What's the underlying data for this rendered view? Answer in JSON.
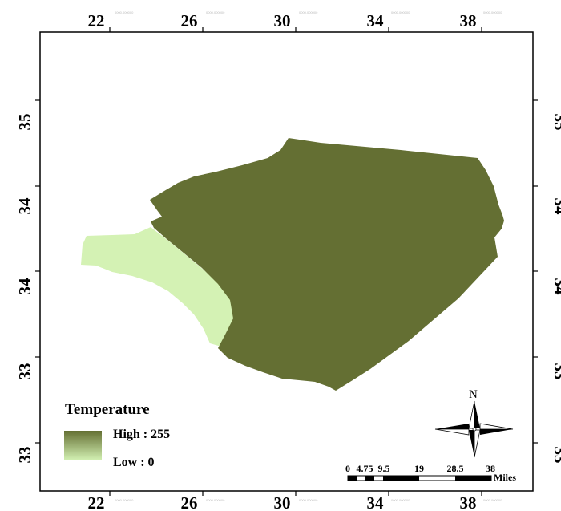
{
  "map": {
    "colors": {
      "high": "#646f33",
      "low": "#d4f2b4",
      "frame": "#000000",
      "background": "#ffffff"
    },
    "x_ticks": [
      "22",
      "26",
      "30",
      "34",
      "38"
    ],
    "y_ticks": [
      "35",
      "34",
      "34",
      "33",
      "33"
    ],
    "regions": [
      {
        "name": "high-temperature-region",
        "level": "high"
      },
      {
        "name": "low-temperature-region",
        "level": "low"
      }
    ]
  },
  "legend": {
    "title": "Temperature",
    "high_label": "High : 255",
    "low_label": "Low : 0"
  },
  "north_arrow": {
    "label": "N",
    "icon": "north-arrow-compass-icon"
  },
  "scale_bar": {
    "labels": [
      "0",
      "4.75",
      "9.5",
      "19",
      "28.5",
      "38"
    ],
    "unit": "Miles"
  }
}
